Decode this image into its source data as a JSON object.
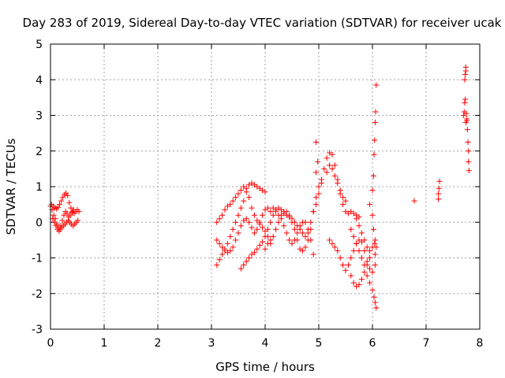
{
  "chart_data": {
    "type": "scatter",
    "title": "Day 283 of 2019, Sidereal Day-to-day VTEC variation (SDTVAR) for receiver ucak",
    "xlabel": "GPS time / hours",
    "ylabel": "SDTVAR / TECUs",
    "xlim": [
      0,
      8
    ],
    "ylim": [
      -3,
      5
    ],
    "x_ticks": [
      "0",
      "1",
      "2",
      "3",
      "4",
      "5",
      "6",
      "7",
      "8"
    ],
    "y_ticks": [
      "-3",
      "-2",
      "-1",
      "0",
      "1",
      "2",
      "3",
      "4",
      "5"
    ],
    "grid": true,
    "marker": "+",
    "series_color": "#ff0000",
    "series": [
      {
        "points": [
          [
            0.0,
            0.45
          ],
          [
            0.03,
            0.35
          ],
          [
            0.06,
            0.2
          ],
          [
            0.09,
            0.1
          ],
          [
            0.12,
            -0.05
          ],
          [
            0.15,
            -0.15
          ],
          [
            0.18,
            -0.2
          ],
          [
            0.21,
            -0.15
          ],
          [
            0.24,
            -0.1
          ],
          [
            0.27,
            -0.05
          ],
          [
            0.3,
            0.0
          ],
          [
            0.33,
            0.05
          ],
          [
            0.36,
            0.0
          ],
          [
            0.39,
            -0.05
          ],
          [
            0.42,
            -0.1
          ],
          [
            0.45,
            -0.05
          ],
          [
            0.48,
            0.0
          ],
          [
            0.51,
            0.05
          ],
          [
            0.02,
            0.5
          ],
          [
            0.05,
            0.45
          ],
          [
            0.08,
            0.4
          ],
          [
            0.11,
            0.38
          ],
          [
            0.14,
            0.42
          ],
          [
            0.17,
            0.5
          ],
          [
            0.2,
            0.6
          ],
          [
            0.23,
            0.7
          ],
          [
            0.26,
            0.78
          ],
          [
            0.29,
            0.82
          ],
          [
            0.32,
            0.75
          ],
          [
            0.35,
            0.55
          ],
          [
            0.38,
            0.4
          ],
          [
            0.41,
            0.3
          ],
          [
            0.44,
            0.25
          ],
          [
            0.47,
            0.3
          ],
          [
            0.5,
            0.35
          ],
          [
            0.53,
            0.3
          ],
          [
            0.04,
            0.1
          ],
          [
            0.07,
            0.0
          ],
          [
            0.1,
            -0.1
          ],
          [
            0.13,
            -0.2
          ],
          [
            0.16,
            -0.25
          ],
          [
            0.19,
            -0.1
          ],
          [
            0.22,
            0.05
          ],
          [
            0.25,
            0.2
          ],
          [
            0.28,
            0.3
          ],
          [
            0.31,
            0.25
          ],
          [
            0.34,
            0.15
          ],
          [
            0.37,
            0.2
          ],
          [
            0.4,
            0.28
          ],
          [
            0.43,
            0.35
          ],
          [
            3.1,
            -1.2
          ],
          [
            3.15,
            -1.05
          ],
          [
            3.2,
            -0.9
          ],
          [
            3.25,
            -0.75
          ],
          [
            3.3,
            -0.6
          ],
          [
            3.35,
            -0.4
          ],
          [
            3.4,
            -0.2
          ],
          [
            3.45,
            0.0
          ],
          [
            3.5,
            0.2
          ],
          [
            3.55,
            0.4
          ],
          [
            3.6,
            0.6
          ],
          [
            3.65,
            0.85
          ],
          [
            3.7,
            1.05
          ],
          [
            3.75,
            1.1
          ],
          [
            3.8,
            1.05
          ],
          [
            3.85,
            1.0
          ],
          [
            3.9,
            0.95
          ],
          [
            3.95,
            0.9
          ],
          [
            4.0,
            0.85
          ],
          [
            3.1,
            0.0
          ],
          [
            3.15,
            0.1
          ],
          [
            3.2,
            0.2
          ],
          [
            3.25,
            0.35
          ],
          [
            3.3,
            0.45
          ],
          [
            3.35,
            0.5
          ],
          [
            3.4,
            0.6
          ],
          [
            3.45,
            0.7
          ],
          [
            3.5,
            0.8
          ],
          [
            3.55,
            0.9
          ],
          [
            3.6,
            1.0
          ],
          [
            3.65,
            0.95
          ],
          [
            3.7,
            0.7
          ],
          [
            3.75,
            0.4
          ],
          [
            3.8,
            0.2
          ],
          [
            3.85,
            0.05
          ],
          [
            3.9,
            -0.05
          ],
          [
            3.95,
            -0.15
          ],
          [
            4.0,
            -0.25
          ],
          [
            4.05,
            -0.4
          ],
          [
            4.1,
            -0.6
          ],
          [
            3.1,
            -0.5
          ],
          [
            3.15,
            -0.6
          ],
          [
            3.2,
            -0.7
          ],
          [
            3.25,
            -0.8
          ],
          [
            3.3,
            -0.85
          ],
          [
            3.35,
            -0.8
          ],
          [
            3.4,
            -0.7
          ],
          [
            3.45,
            -0.5
          ],
          [
            3.5,
            -0.3
          ],
          [
            3.55,
            -0.1
          ],
          [
            3.6,
            0.05
          ],
          [
            3.65,
            0.1
          ],
          [
            3.7,
            0.0
          ],
          [
            3.75,
            -0.15
          ],
          [
            3.8,
            -0.3
          ],
          [
            3.85,
            -0.2
          ],
          [
            3.9,
            0.0
          ],
          [
            3.95,
            0.2
          ],
          [
            4.0,
            0.35
          ],
          [
            4.05,
            0.4
          ],
          [
            3.55,
            -1.3
          ],
          [
            3.6,
            -1.2
          ],
          [
            3.65,
            -1.1
          ],
          [
            3.7,
            -1.0
          ],
          [
            3.75,
            -0.9
          ],
          [
            3.8,
            -0.85
          ],
          [
            3.85,
            -0.75
          ],
          [
            3.9,
            -0.65
          ],
          [
            3.95,
            -0.55
          ],
          [
            4.0,
            -0.4
          ],
          [
            4.05,
            -0.2
          ],
          [
            4.1,
            0.0
          ],
          [
            4.15,
            0.2
          ],
          [
            4.2,
            0.35
          ],
          [
            4.25,
            0.4
          ],
          [
            4.3,
            0.35
          ],
          [
            4.35,
            0.25
          ],
          [
            4.4,
            0.2
          ],
          [
            4.45,
            0.15
          ],
          [
            4.5,
            0.1
          ],
          [
            4.55,
            0.0
          ],
          [
            4.6,
            -0.1
          ],
          [
            4.65,
            -0.2
          ],
          [
            4.7,
            -0.3
          ],
          [
            4.75,
            -0.4
          ],
          [
            4.0,
            -0.75
          ],
          [
            4.05,
            -0.6
          ],
          [
            4.1,
            -0.5
          ],
          [
            4.15,
            -0.4
          ],
          [
            4.2,
            -0.2
          ],
          [
            4.25,
            0.0
          ],
          [
            4.3,
            0.2
          ],
          [
            4.35,
            0.3
          ],
          [
            4.4,
            0.3
          ],
          [
            4.45,
            0.2
          ],
          [
            4.5,
            0.0
          ],
          [
            4.55,
            -0.2
          ],
          [
            4.6,
            -0.5
          ],
          [
            4.65,
            -0.75
          ],
          [
            4.7,
            -0.8
          ],
          [
            4.75,
            -0.7
          ],
          [
            4.8,
            -0.5
          ],
          [
            4.85,
            -0.2
          ],
          [
            4.9,
            0.3
          ],
          [
            4.95,
            0.7
          ],
          [
            5.0,
            1.0
          ],
          [
            5.05,
            1.1
          ],
          [
            4.1,
            0.3
          ],
          [
            4.15,
            0.4
          ],
          [
            4.2,
            0.3
          ],
          [
            4.25,
            0.2
          ],
          [
            4.3,
            0.1
          ],
          [
            4.35,
            -0.1
          ],
          [
            4.4,
            -0.3
          ],
          [
            4.45,
            -0.5
          ],
          [
            4.5,
            -0.6
          ],
          [
            4.55,
            -0.5
          ],
          [
            4.6,
            -0.3
          ],
          [
            4.65,
            -0.1
          ],
          [
            4.7,
            0.0
          ],
          [
            4.75,
            0.0
          ],
          [
            4.8,
            -0.2
          ],
          [
            4.85,
            -0.5
          ],
          [
            4.9,
            -0.9
          ],
          [
            4.8,
            -0.3
          ],
          [
            4.85,
            0.0
          ],
          [
            4.9,
            0.3
          ],
          [
            4.95,
            0.5
          ],
          [
            5.0,
            0.8
          ],
          [
            5.05,
            1.2
          ],
          [
            5.1,
            1.5
          ],
          [
            5.15,
            1.8
          ],
          [
            5.2,
            1.95
          ],
          [
            5.25,
            1.9
          ],
          [
            5.3,
            1.6
          ],
          [
            5.35,
            1.2
          ],
          [
            5.4,
            0.8
          ],
          [
            5.45,
            0.5
          ],
          [
            5.5,
            0.3
          ],
          [
            5.55,
            0.25
          ],
          [
            5.6,
            0.3
          ],
          [
            5.65,
            0.25
          ],
          [
            5.7,
            0.2
          ],
          [
            5.75,
            0.15
          ],
          [
            5.15,
            1.4
          ],
          [
            5.2,
            1.6
          ],
          [
            5.25,
            1.5
          ],
          [
            5.3,
            1.3
          ],
          [
            5.35,
            1.1
          ],
          [
            5.4,
            0.9
          ],
          [
            5.45,
            0.7
          ],
          [
            5.5,
            0.6
          ],
          [
            4.95,
            2.25
          ],
          [
            4.98,
            1.7
          ],
          [
            4.95,
            1.4
          ],
          [
            5.2,
            -0.5
          ],
          [
            5.25,
            -0.6
          ],
          [
            5.3,
            -0.7
          ],
          [
            5.35,
            -0.8
          ],
          [
            5.4,
            -1.0
          ],
          [
            5.45,
            -1.2
          ],
          [
            5.5,
            -1.35
          ],
          [
            5.55,
            -1.2
          ],
          [
            5.6,
            -1.0
          ],
          [
            5.65,
            -0.8
          ],
          [
            5.7,
            -0.6
          ],
          [
            5.75,
            -0.5
          ],
          [
            5.8,
            -0.55
          ],
          [
            5.85,
            -0.8
          ],
          [
            5.9,
            -1.1
          ],
          [
            5.95,
            -1.3
          ],
          [
            6.0,
            -1.4
          ],
          [
            6.05,
            -1.2
          ],
          [
            5.6,
            -0.2
          ],
          [
            5.65,
            -0.4
          ],
          [
            5.7,
            -0.6
          ],
          [
            5.75,
            -0.8
          ],
          [
            5.8,
            -1.0
          ],
          [
            5.85,
            -1.2
          ],
          [
            5.9,
            -1.5
          ],
          [
            5.95,
            -1.7
          ],
          [
            6.0,
            -1.9
          ],
          [
            6.03,
            -2.1
          ],
          [
            6.05,
            -2.25
          ],
          [
            6.07,
            -2.4
          ],
          [
            5.7,
            0.1
          ],
          [
            5.75,
            -0.1
          ],
          [
            5.8,
            -0.3
          ],
          [
            5.85,
            -0.5
          ],
          [
            5.9,
            -0.7
          ],
          [
            5.95,
            -0.8
          ],
          [
            6.0,
            -0.7
          ],
          [
            6.05,
            -0.5
          ],
          [
            5.6,
            -1.5
          ],
          [
            5.65,
            -1.7
          ],
          [
            5.7,
            -1.8
          ],
          [
            5.75,
            -1.75
          ],
          [
            5.8,
            -1.6
          ],
          [
            5.85,
            -1.4
          ],
          [
            5.9,
            -1.2
          ],
          [
            5.95,
            -1.0
          ],
          [
            5.95,
            0.5
          ],
          [
            6.0,
            0.2
          ],
          [
            6.02,
            -0.2
          ],
          [
            6.04,
            -0.6
          ],
          [
            6.05,
            -0.9
          ],
          [
            6.07,
            -0.7
          ],
          [
            6.0,
            0.9
          ],
          [
            6.02,
            1.3
          ],
          [
            6.03,
            1.9
          ],
          [
            6.04,
            2.3
          ],
          [
            6.05,
            2.8
          ],
          [
            6.06,
            3.1
          ],
          [
            6.07,
            3.85
          ],
          [
            6.78,
            0.6
          ],
          [
            7.23,
            0.65
          ],
          [
            7.23,
            0.8
          ],
          [
            7.24,
            0.95
          ],
          [
            7.25,
            1.15
          ],
          [
            7.7,
            3.0
          ],
          [
            7.71,
            3.1
          ],
          [
            7.72,
            3.35
          ],
          [
            7.73,
            3.45
          ],
          [
            7.72,
            4.0
          ],
          [
            7.73,
            4.15
          ],
          [
            7.74,
            4.25
          ],
          [
            7.74,
            4.35
          ],
          [
            7.75,
            3.05
          ],
          [
            7.76,
            2.85
          ],
          [
            7.77,
            2.6
          ],
          [
            7.78,
            2.25
          ],
          [
            7.79,
            2.0
          ],
          [
            7.79,
            1.7
          ],
          [
            7.8,
            1.45
          ],
          [
            7.76,
            2.9
          ],
          [
            7.74,
            2.8
          ]
        ]
      }
    ]
  }
}
